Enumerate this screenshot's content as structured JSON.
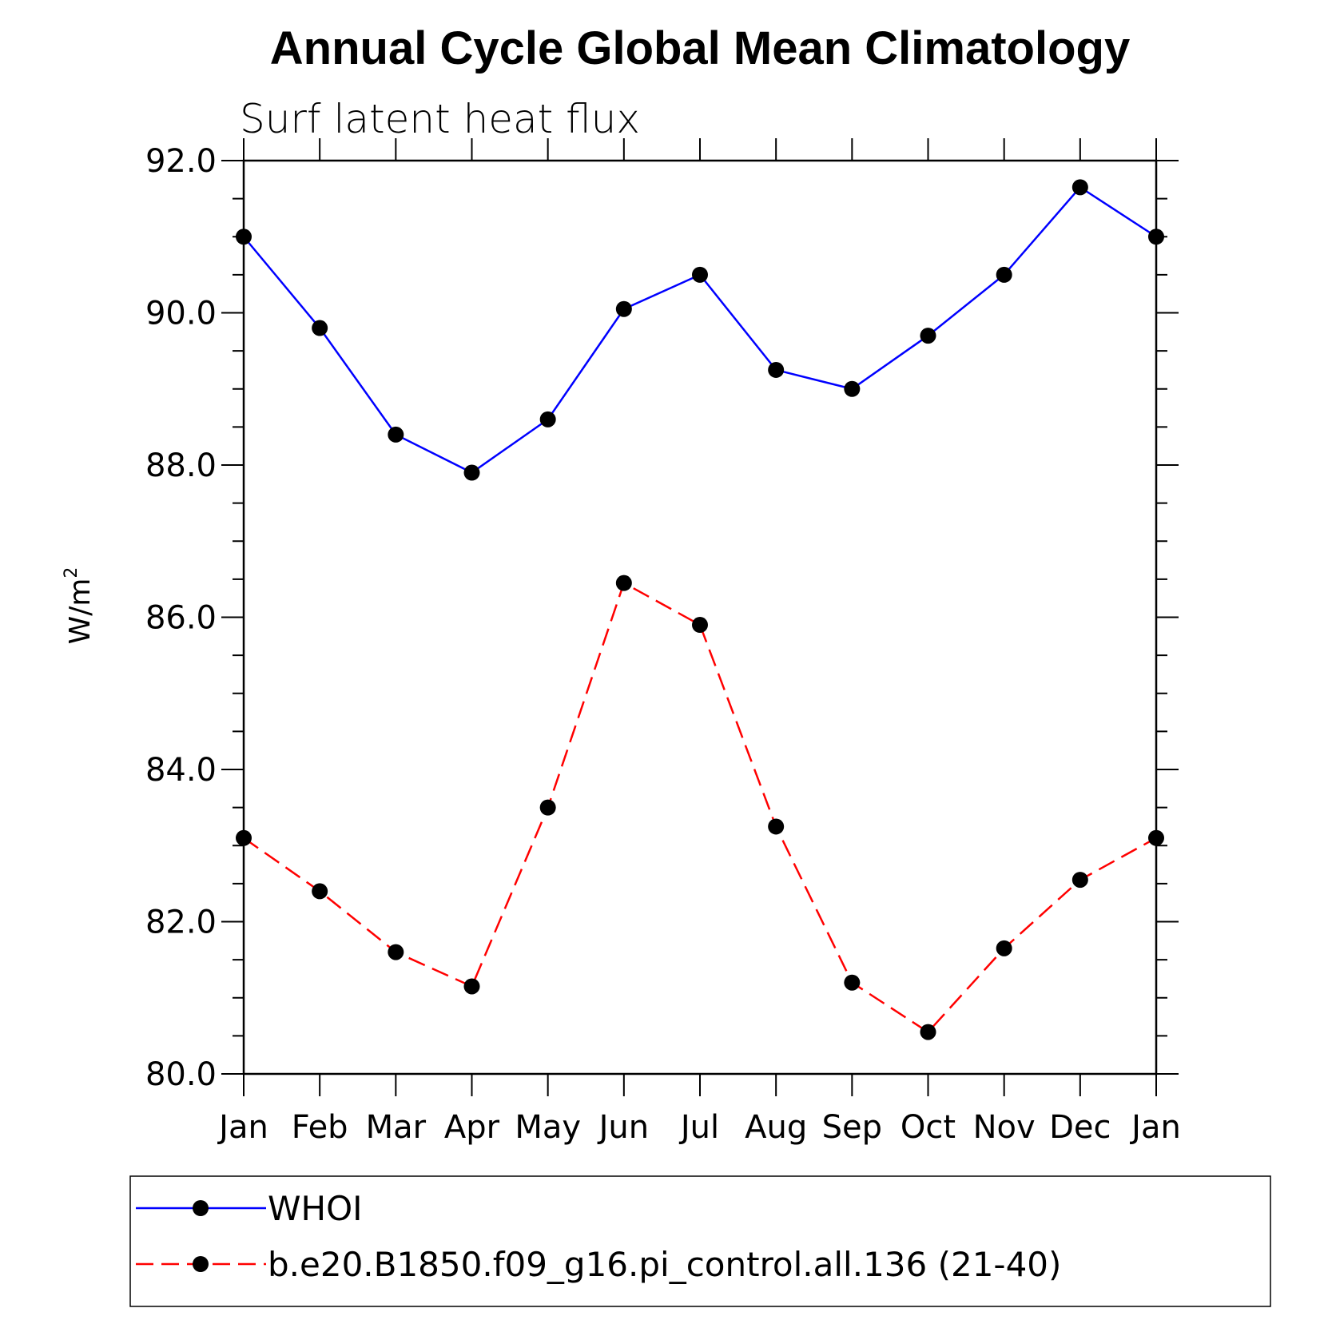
{
  "chart_data": {
    "type": "line",
    "title": "Annual Cycle Global Mean Climatology",
    "subtitle": "Surf latent heat flux",
    "ylabel": "W/m",
    "ylabel_sup": "2",
    "xlabel": "",
    "categories": [
      "Jan",
      "Feb",
      "Mar",
      "Apr",
      "May",
      "Jun",
      "Jul",
      "Aug",
      "Sep",
      "Oct",
      "Nov",
      "Dec",
      "Jan"
    ],
    "ylim": [
      80.0,
      92.0
    ],
    "yticks": [
      "80.0",
      "82.0",
      "84.0",
      "86.0",
      "88.0",
      "90.0",
      "92.0"
    ],
    "grid": false,
    "legend_position": "bottom",
    "series": [
      {
        "name": "WHOI",
        "color": "#0000ff",
        "line_style": "solid",
        "marker": "filled-circle",
        "values": [
          91.0,
          89.8,
          88.4,
          87.9,
          88.6,
          90.05,
          90.5,
          89.25,
          89.0,
          89.7,
          90.5,
          91.65,
          91.0
        ]
      },
      {
        "name": "b.e20.B1850.f09_g16.pi_control.all.136 (21-40)",
        "color": "#ff0000",
        "line_style": "dashed",
        "marker": "filled-circle",
        "values": [
          83.1,
          82.4,
          81.6,
          81.15,
          83.5,
          86.45,
          85.9,
          83.25,
          81.2,
          80.55,
          81.65,
          82.55,
          83.1
        ]
      }
    ]
  }
}
